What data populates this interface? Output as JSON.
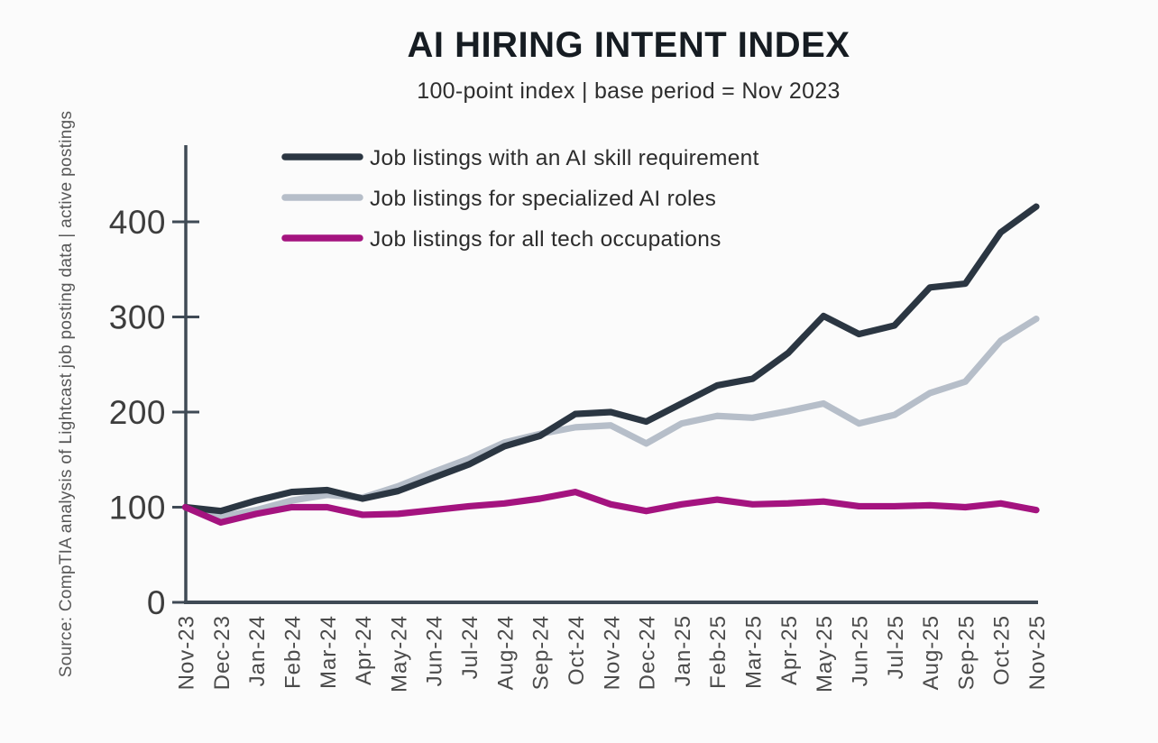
{
  "header": {
    "title": "AI HIRING INTENT INDEX",
    "subtitle": "100-point index | base period = Nov 2023"
  },
  "source_note": "Source: CompTIA analysis of Lightcast job posting data | active postings",
  "colors": {
    "background": "#fbfbfb",
    "axis": "#3f4a55",
    "tick_label": "#3d3d3d",
    "month_label": "#4b4b4b",
    "legend_label": "#2c2c2c",
    "title": "#161c22",
    "series_dark": "#2b3642",
    "series_gray": "#b6bec9",
    "series_magenta": "#a4137f"
  },
  "chart_data": {
    "type": "line",
    "title": "AI HIRING INTENT INDEX",
    "subtitle": "100-point index | base period = Nov 2023",
    "xlabel": "",
    "ylabel": "",
    "ylim": [
      0,
      480
    ],
    "yticks": [
      0,
      100,
      200,
      300,
      400
    ],
    "grid": false,
    "legend_position": "top-left-inside",
    "categories": [
      "Nov-23",
      "Dec-23",
      "Jan-24",
      "Feb-24",
      "Mar-24",
      "Apr-24",
      "May-24",
      "Jun-24",
      "Jul-24",
      "Aug-24",
      "Sep-24",
      "Oct-24",
      "Nov-24",
      "Dec-24",
      "Jan-25",
      "Feb-25",
      "Mar-25",
      "Apr-25",
      "May-25",
      "Jun-25",
      "Jul-25",
      "Aug-25",
      "Sep-25",
      "Oct-25",
      "Nov-25"
    ],
    "series": [
      {
        "name": "Job listings with an AI skill requirement",
        "color": "#2b3642",
        "values": [
          100,
          96,
          107,
          116,
          118,
          109,
          117,
          131,
          145,
          164,
          175,
          198,
          200,
          190,
          209,
          228,
          235,
          262,
          301,
          282,
          291,
          331,
          335,
          389,
          416
        ]
      },
      {
        "name": "Job listings for specialized AI roles",
        "color": "#b6bec9",
        "values": [
          100,
          90,
          97,
          107,
          113,
          110,
          122,
          137,
          151,
          168,
          177,
          184,
          186,
          167,
          188,
          196,
          194,
          201,
          209,
          188,
          197,
          220,
          232,
          275,
          298
        ]
      },
      {
        "name": "Job listings for all tech occupations",
        "color": "#a4137f",
        "values": [
          100,
          84,
          93,
          100,
          100,
          92,
          93,
          97,
          101,
          104,
          109,
          116,
          103,
          96,
          103,
          108,
          103,
          104,
          106,
          101,
          101,
          102,
          100,
          104,
          97
        ]
      }
    ]
  }
}
